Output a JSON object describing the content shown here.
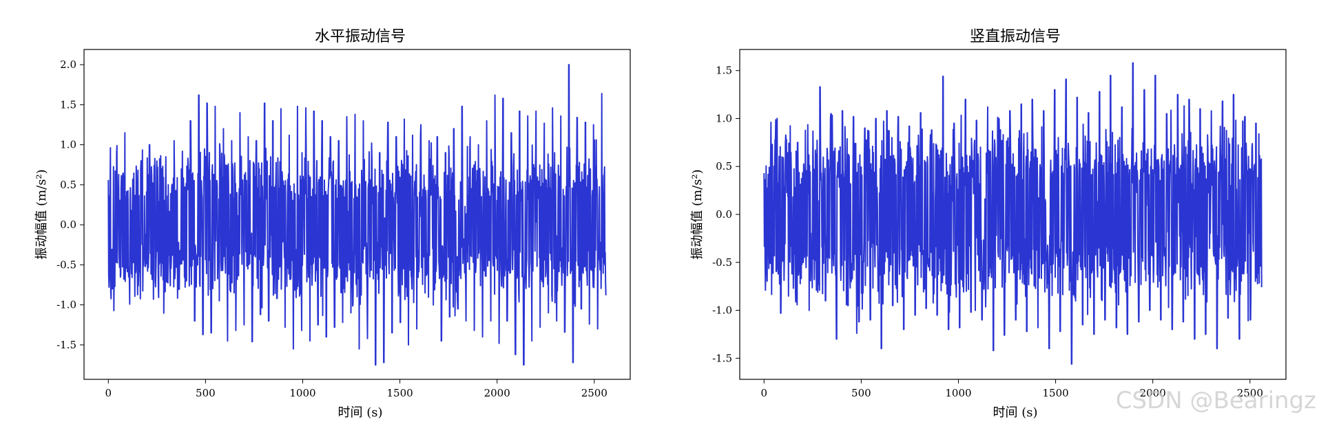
{
  "colors": {
    "series": "#2a35d2"
  },
  "watermark": "CSDN @Bearingz",
  "chart_data": [
    {
      "type": "line",
      "title": "水平振动信号",
      "xlabel": "时间 (s)",
      "ylabel": "振动幅值 (m/s²)",
      "xlim": [
        -125,
        2685
      ],
      "ylim": [
        -1.93,
        2.19
      ],
      "xticks": [
        0,
        500,
        1000,
        1500,
        2000,
        2500
      ],
      "xtick_labels": [
        "0",
        "500",
        "1000",
        "1500",
        "2000",
        "2500"
      ],
      "yticks": [
        -1.5,
        -1.0,
        -0.5,
        0.0,
        0.5,
        1.0,
        1.5,
        2.0
      ],
      "ytick_labels": [
        "-1.5",
        "-1.0",
        "-0.5",
        "0.0",
        "0.5",
        "1.0",
        "1.5",
        "2.0"
      ],
      "grid": false,
      "series": [
        {
          "x_start": 0,
          "x_end": 2560,
          "n_points": 2560,
          "values": [
            0.56,
            -0.8,
            0.89,
            -0.62,
            1.15,
            -0.65,
            0.57,
            -0.45,
            0.8,
            -0.52,
            1.0,
            -0.93,
            0.72,
            -0.48,
            0.85,
            -0.61,
            1.05,
            -0.66,
            0.92,
            -0.7,
            1.3,
            -1.2,
            1.62,
            -1.37,
            1.52,
            -1.35,
            1.48,
            -0.95,
            1.2,
            -1.45,
            1.05,
            -1.32,
            1.4,
            -1.25,
            1.1,
            -1.46,
            1.05,
            -1.12,
            1.52,
            -1.2,
            1.3,
            -0.92,
            1.45,
            -1.28,
            1.12,
            -1.55,
            1.48,
            -1.32,
            1.46,
            -1.45,
            1.42,
            -1.25,
            1.3,
            -1.4,
            1.1,
            -1.28,
            1.05,
            -1.22,
            1.35,
            -1.1,
            1.38,
            -1.55,
            1.3,
            -1.42,
            1.02,
            -1.75,
            0.9,
            -1.72,
            1.28,
            -1.35,
            1.1,
            -1.22,
            1.32,
            -1.5,
            1.12,
            -1.3,
            1.25,
            -0.85,
            1.05,
            -1.0,
            1.1,
            -1.45,
            0.9,
            -1.15,
            1.2,
            -1.05,
            1.48,
            -1.2,
            1.1,
            -1.32,
            1.0,
            -1.4,
            1.3,
            -1.2,
            1.62,
            -1.48,
            1.58,
            -1.2,
            1.15,
            -1.62,
            1.42,
            -1.75,
            1.36,
            -1.45,
            1.42,
            -1.28,
            1.27,
            -1.1,
            1.46,
            -1.2,
            1.36,
            -1.34,
            2.0,
            -1.72,
            1.34,
            -1.05,
            1.28,
            -1.24,
            1.25,
            -1.3,
            1.64,
            -0.88
          ]
        }
      ]
    },
    {
      "type": "line",
      "title": "竖直振动信号",
      "xlabel": "时间 (s)",
      "ylabel": "振动幅值 (m/s²)",
      "xlim": [
        -125,
        2685
      ],
      "ylim": [
        -1.72,
        1.72
      ],
      "xticks": [
        0,
        500,
        1000,
        1500,
        2000,
        2500
      ],
      "xtick_labels": [
        "0",
        "500",
        "1000",
        "1500",
        "2000",
        "2500"
      ],
      "yticks": [
        -1.5,
        -1.0,
        -0.5,
        0.0,
        0.5,
        1.0,
        1.5
      ],
      "ytick_labels": [
        "-1.5",
        "-1.0",
        "-0.5",
        "0.0",
        "0.5",
        "1.0",
        "1.5"
      ],
      "grid": false,
      "series": [
        {
          "x_start": 0,
          "x_end": 2560,
          "n_points": 2560,
          "values": [
            0.43,
            -0.47,
            0.78,
            -1.03,
            0.78,
            -0.62,
            0.75,
            -0.5,
            0.62,
            -0.68,
            1.33,
            -0.9,
            1.05,
            -1.3,
            1.08,
            -0.95,
            1.02,
            -1.12,
            0.9,
            -1.1,
            1.0,
            -1.4,
            1.08,
            -0.95,
            1.02,
            -1.2,
            0.92,
            -1.05,
            1.06,
            -0.98,
            0.88,
            -1.05,
            1.44,
            -1.2,
            0.95,
            -1.18,
            1.2,
            -1.02,
            0.98,
            -1.1,
            1.12,
            -1.42,
            1.0,
            -1.26,
            1.08,
            -1.1,
            1.15,
            -1.22,
            1.2,
            -1.18,
            1.08,
            -1.4,
            1.3,
            -1.22,
            1.41,
            -1.56,
            1.22,
            -1.15,
            1.06,
            -1.25,
            1.28,
            -1.1,
            1.45,
            -1.18,
            1.12,
            -1.25,
            1.58,
            -1.12,
            1.3,
            -1.0,
            1.45,
            -1.1,
            1.05,
            -1.2,
            1.25,
            -1.12,
            1.2,
            -1.3,
            1.1,
            -1.25,
            1.08,
            -1.4,
            1.18,
            -1.08,
            1.25,
            -1.3,
            1.02,
            -1.1,
            0.95,
            -0.76
          ]
        }
      ]
    }
  ]
}
